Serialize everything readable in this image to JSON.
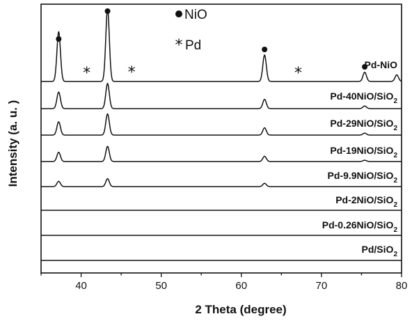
{
  "chart_data": {
    "type": "line",
    "xlabel": "2 Theta (degree)",
    "ylabel": "Intensity (a. u. )",
    "xlim": [
      35,
      80
    ],
    "xticks": [
      40,
      50,
      60,
      70,
      80
    ],
    "y_tick_labels": "none",
    "legend": {
      "placement": "top-center",
      "entries": [
        {
          "symbol": "●",
          "label": "NiO"
        },
        {
          "symbol": "*",
          "label": "Pd"
        }
      ]
    },
    "series": [
      {
        "name": "Pd-NiO",
        "label_main": "Pd-NiO",
        "label_sub": "",
        "label_tail": "",
        "peaks": [
          [
            37.2,
            7.5
          ],
          [
            43.3,
            11
          ],
          [
            62.9,
            4
          ],
          [
            75.4,
            1.4
          ],
          [
            79.4,
            1.0
          ]
        ]
      },
      {
        "name": "Pd-40NiO/SiO2",
        "label_main": "Pd-40NiO/SiO",
        "label_sub": "2",
        "label_tail": "",
        "peaks": [
          [
            37.2,
            2.5
          ],
          [
            43.3,
            3.8
          ],
          [
            62.9,
            1.4
          ],
          [
            75.4,
            0.4
          ]
        ]
      },
      {
        "name": "Pd-29NiO/SiO2",
        "label_main": "Pd-29NiO/SiO",
        "label_sub": "2",
        "label_tail": "",
        "peaks": [
          [
            37.2,
            2.0
          ],
          [
            43.3,
            3.2
          ],
          [
            62.9,
            1.1
          ],
          [
            75.4,
            0.3
          ]
        ]
      },
      {
        "name": "Pd-19NiO/SiO2",
        "label_main": "Pd-19NiO/SiO",
        "label_sub": "2",
        "label_tail": "",
        "peaks": [
          [
            37.2,
            1.4
          ],
          [
            43.3,
            2.3
          ],
          [
            62.9,
            0.8
          ],
          [
            75.4,
            0.2
          ]
        ]
      },
      {
        "name": "Pd-9.9NiO/SiO2",
        "label_main": "Pd-9.9NiO/SiO",
        "label_sub": "2",
        "label_tail": "",
        "peaks": [
          [
            37.2,
            0.8
          ],
          [
            43.3,
            1.2
          ],
          [
            62.9,
            0.5
          ]
        ]
      },
      {
        "name": "Pd-2NiO/SiO2",
        "label_main": "Pd-2NiO/SiO",
        "label_sub": "2",
        "label_tail": "",
        "peaks": []
      },
      {
        "name": "Pd-0.26NiO/SiO2",
        "label_main": "Pd-0.26NiO/SiO",
        "label_sub": "2",
        "label_tail": "",
        "peaks": []
      },
      {
        "name": "Pd/SiO2",
        "label_main": "Pd/SiO",
        "label_sub": "2",
        "label_tail": "",
        "peaks": []
      }
    ],
    "markers": [
      {
        "symbol": "●",
        "x": 37.2
      },
      {
        "symbol": "●",
        "x": 43.3
      },
      {
        "symbol": "●",
        "x": 62.9
      },
      {
        "symbol": "●",
        "x": 75.4
      },
      {
        "symbol": "*",
        "x": 40.7
      },
      {
        "symbol": "*",
        "x": 46.3
      },
      {
        "symbol": "*",
        "x": 67.1
      }
    ],
    "grid": false
  }
}
